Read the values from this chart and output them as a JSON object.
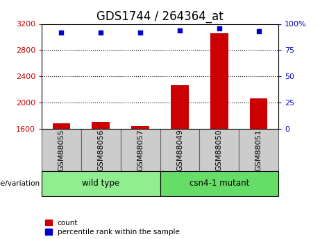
{
  "title": "GDS1744 / 264364_at",
  "samples": [
    "GSM88055",
    "GSM88056",
    "GSM88057",
    "GSM88049",
    "GSM88050",
    "GSM88051"
  ],
  "groups": [
    {
      "label": "wild type",
      "indices": [
        0,
        1,
        2
      ],
      "color": "#90ee90"
    },
    {
      "label": "csn4-1 mutant",
      "indices": [
        3,
        4,
        5
      ],
      "color": "#66dd66"
    }
  ],
  "counts": [
    1680,
    1710,
    1640,
    2270,
    3060,
    2060
  ],
  "percentile_ranks": [
    92,
    92,
    92,
    94,
    96,
    93
  ],
  "ylim_left": [
    1600,
    3200
  ],
  "ylim_right": [
    0,
    100
  ],
  "yticks_left": [
    1600,
    2000,
    2400,
    2800,
    3200
  ],
  "yticks_right": [
    0,
    25,
    50,
    75,
    100
  ],
  "bar_color": "#cc0000",
  "dot_color": "#0000cc",
  "left_tick_color": "#cc0000",
  "right_tick_color": "#0000cc",
  "title_fontsize": 12,
  "axis_fontsize": 8,
  "tick_label_fontsize": 8,
  "legend_label_count": "count",
  "legend_label_percentile": "percentile rank within the sample",
  "genotype_label": "genotype/variation",
  "background_color": "#ffffff",
  "plot_bg_color": "#ffffff",
  "sample_box_color": "#cccccc",
  "group_border_color": "#000000"
}
